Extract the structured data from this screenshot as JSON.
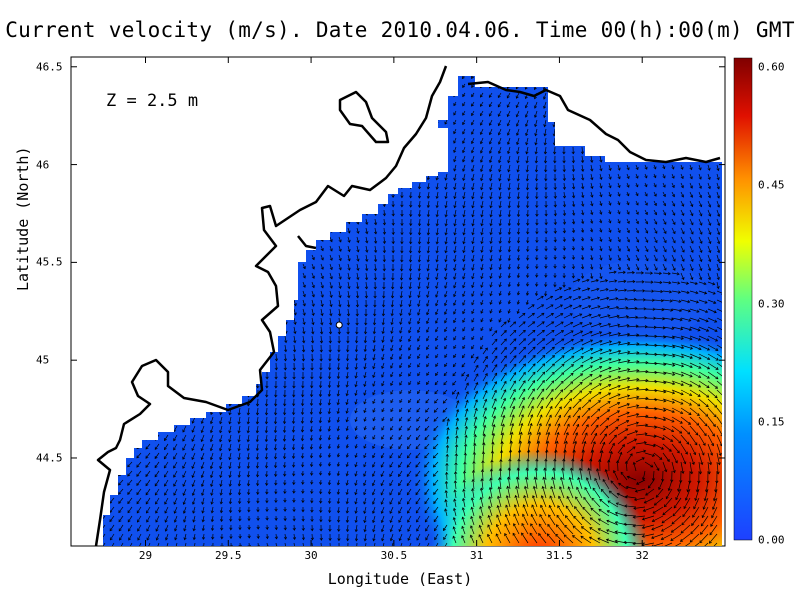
{
  "title": "Current velocity (m/s). Date 2010.04.06. Time 00(h):00(m) GMT",
  "depth_label": "Z = 2.5 m",
  "axes": {
    "x": {
      "label": "Longitude (East)",
      "ticks": [
        "29",
        "29.5",
        "30",
        "30.5",
        "31",
        "31.5",
        "32"
      ],
      "range": [
        28.55,
        32.5
      ]
    },
    "y": {
      "label": "Latitude (North)",
      "ticks": [
        "44.5",
        "45",
        "45.5",
        "46",
        "46.5"
      ],
      "range": [
        44.05,
        46.55
      ]
    }
  },
  "colorbar": {
    "ticks": [
      "0.00",
      "0.15",
      "0.30",
      "0.45",
      "0.60"
    ],
    "range": [
      0,
      0.6
    ],
    "colors": [
      "#1e40ff",
      "#00c8ff",
      "#70ff70",
      "#ffff00",
      "#ff8000",
      "#d00000",
      "#800000"
    ]
  },
  "colors": {
    "ocean_base": "#1050ee",
    "arrow": "#000000",
    "coast": "#000000"
  },
  "marker": {
    "lon": 30.17,
    "lat": 45.18
  }
}
